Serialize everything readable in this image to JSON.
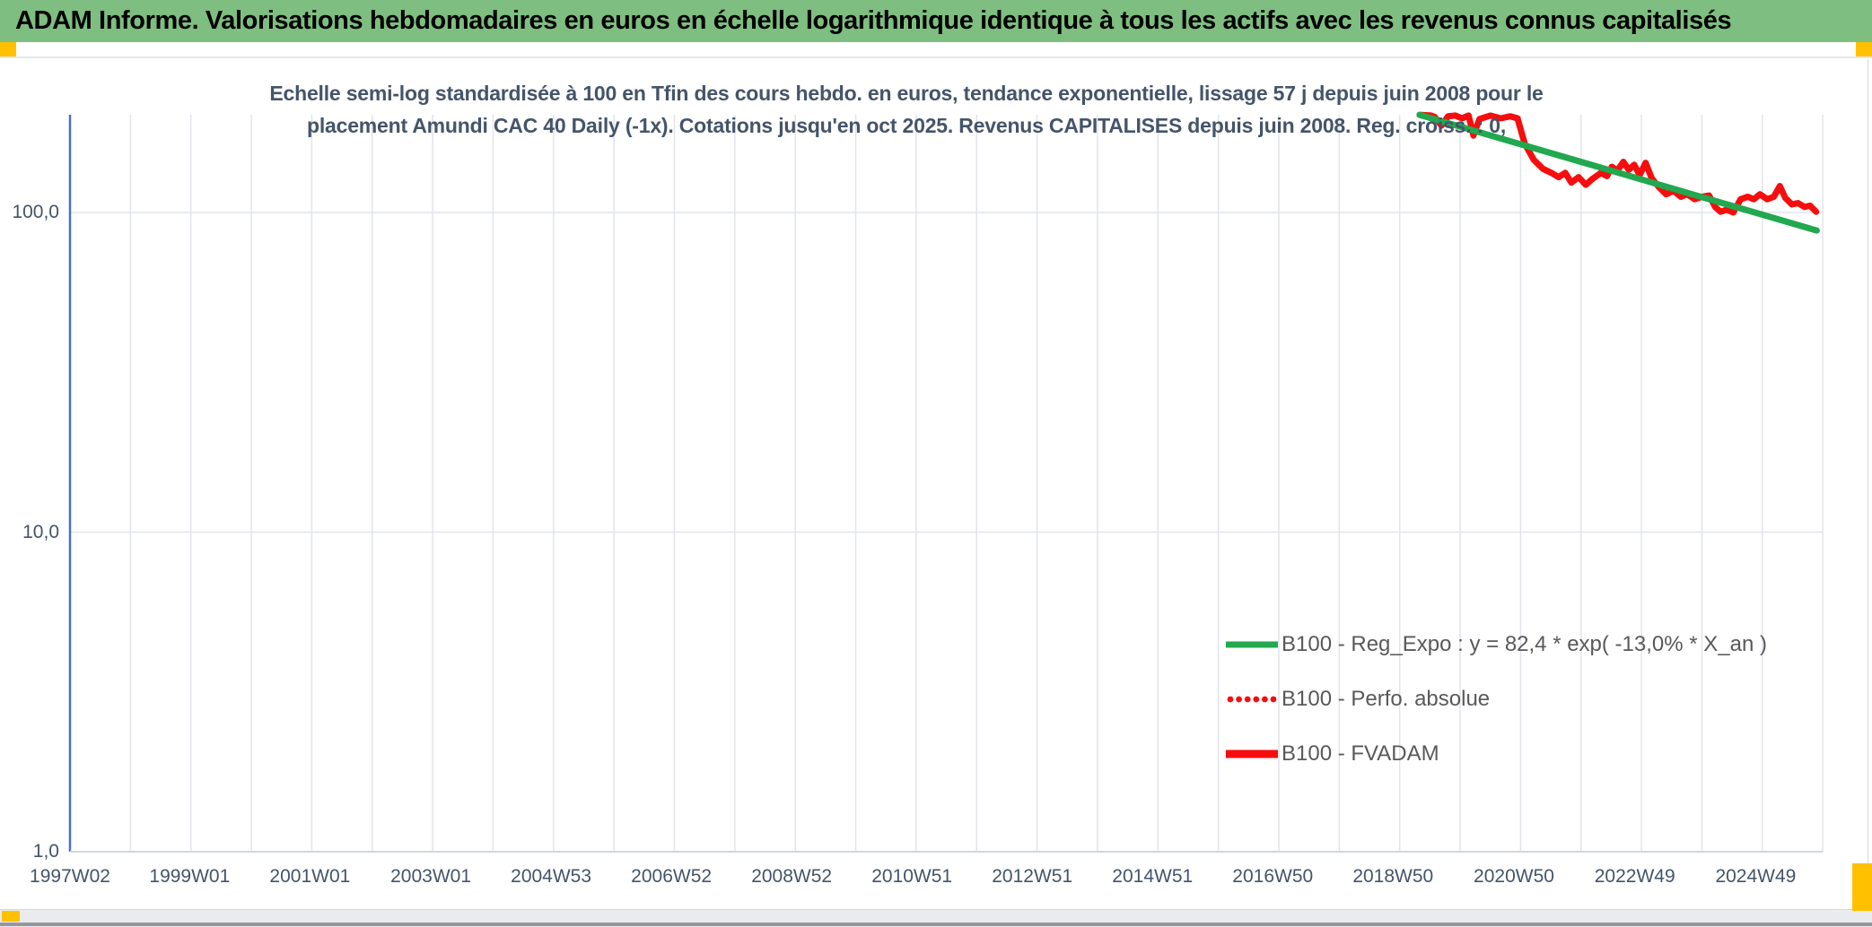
{
  "header": {
    "title": "ADAM Informe. Valorisations hebdomadaires en euros en échelle logarithmique identique à tous les actifs avec les revenus connus capitalisés",
    "bg_color": "#7EBE80",
    "accent_color": "#FFC000"
  },
  "chart": {
    "title_line1": "Echelle semi-log standardisée à 100 en Tfin des cours hebdo. en euros, tendance exponentielle, lissage 57 j depuis juin 2008 pour le",
    "title_line2": "placement Amundi CAC 40 Daily (-1x). Cotations jusqu'en oct 2025. Revenus CAPITALISES depuis juin 2008. Reg. croiss. : 0,",
    "legend": [
      {
        "label": "B100 - Reg_Expo : y = 82,4 * exp( -13,0% * X_an )",
        "color": "#22A84E",
        "style": "solid"
      },
      {
        "label": "B100 - Perfo. absolue",
        "color": "#F70D0D",
        "style": "dotted"
      },
      {
        "label": "B100 - FVADAM",
        "color": "#F70D0D",
        "style": "solid"
      }
    ]
  },
  "chart_data": {
    "type": "line",
    "title": "Echelle semi-log standardisée à 100 en Tfin des cours hebdo. en euros, tendance exponentielle, lissage 57 j depuis juin 2008 pour le placement Amundi CAC 40 Daily (-1x). Cotations jusqu'en oct 2025. Revenus CAPITALISES depuis juin 2008. Reg. croiss. : 0,",
    "x_axis": {
      "tick_labels": [
        "1997W02",
        "1999W01",
        "2001W01",
        "2003W01",
        "2004W53",
        "2006W52",
        "2008W52",
        "2010W51",
        "2012W51",
        "2014W51",
        "2016W50",
        "2018W50",
        "2020W50",
        "2022W49",
        "2024W49"
      ],
      "tick_years": [
        1997.03,
        1999.01,
        2001.0,
        2003.0,
        2004.99,
        2006.98,
        2008.97,
        2010.96,
        2012.95,
        2014.94,
        2016.93,
        2018.92,
        2020.92,
        2022.92,
        2024.92
      ],
      "range_years": [
        1997.03,
        2026.0
      ],
      "gridlines": "yearly"
    },
    "y_axis": {
      "scale": "log10",
      "tick_labels": [
        "100,0",
        "10,0",
        "1,0"
      ],
      "tick_values": [
        100,
        10,
        1
      ],
      "range": [
        1,
        202
      ],
      "gridlines": "major decades"
    },
    "series": [
      {
        "name": "B100 - FVADAM",
        "color": "#F70D0D",
        "style": "solid",
        "stroke_width": 7,
        "points": [
          [
            2019.36,
            202
          ],
          [
            2019.55,
            201
          ],
          [
            2019.61,
            199
          ],
          [
            2019.72,
            187
          ],
          [
            2019.83,
            200
          ],
          [
            2019.95,
            201
          ],
          [
            2020.06,
            197
          ],
          [
            2020.17,
            201
          ],
          [
            2020.25,
            174
          ],
          [
            2020.35,
            196
          ],
          [
            2020.53,
            201
          ],
          [
            2020.7,
            197
          ],
          [
            2020.86,
            200
          ],
          [
            2020.98,
            197
          ],
          [
            2021.1,
            164
          ],
          [
            2021.25,
            146
          ],
          [
            2021.4,
            137
          ],
          [
            2021.54,
            133
          ],
          [
            2021.66,
            129
          ],
          [
            2021.77,
            133
          ],
          [
            2021.87,
            124
          ],
          [
            2021.99,
            129
          ],
          [
            2022.11,
            122
          ],
          [
            2022.21,
            127
          ],
          [
            2022.36,
            133
          ],
          [
            2022.46,
            130
          ],
          [
            2022.54,
            139
          ],
          [
            2022.63,
            135
          ],
          [
            2022.73,
            144
          ],
          [
            2022.82,
            136
          ],
          [
            2022.91,
            141
          ],
          [
            2023.0,
            131
          ],
          [
            2023.1,
            143
          ],
          [
            2023.2,
            128
          ],
          [
            2023.32,
            120
          ],
          [
            2023.44,
            114
          ],
          [
            2023.56,
            117
          ],
          [
            2023.68,
            112
          ],
          [
            2023.79,
            114
          ],
          [
            2023.91,
            110
          ],
          [
            2024.03,
            112
          ],
          [
            2024.15,
            113
          ],
          [
            2024.25,
            104
          ],
          [
            2024.34,
            100.5
          ],
          [
            2024.44,
            102
          ],
          [
            2024.55,
            100
          ],
          [
            2024.67,
            110
          ],
          [
            2024.79,
            112
          ],
          [
            2024.89,
            110
          ],
          [
            2024.99,
            114
          ],
          [
            2025.11,
            110
          ],
          [
            2025.22,
            112
          ],
          [
            2025.32,
            121
          ],
          [
            2025.41,
            111
          ],
          [
            2025.52,
            106
          ],
          [
            2025.62,
            107
          ],
          [
            2025.73,
            104
          ],
          [
            2025.82,
            105
          ],
          [
            2025.92,
            100.5
          ]
        ]
      },
      {
        "name": "B100 - Reg_Expo",
        "color": "#22A84E",
        "style": "solid",
        "stroke_width": 7,
        "equation": "y = 82,4 * exp( -13,0% * X_an )",
        "points": [
          [
            2019.36,
            202
          ],
          [
            2025.93,
            87.8
          ]
        ]
      },
      {
        "name": "B100 - Perfo. absolue",
        "color": "#F70D0D",
        "style": "dotted",
        "visible_in_plot": false
      }
    ],
    "legend_position": "inside right, middle-low",
    "grid_on": true
  },
  "colors": {
    "gridline": "#E1E5EA",
    "y_axis_line": "#4472C4",
    "x_axis_line": "#D2D7DC",
    "tick_text": "#44546A",
    "legend_text": "#595959"
  },
  "footer": {}
}
